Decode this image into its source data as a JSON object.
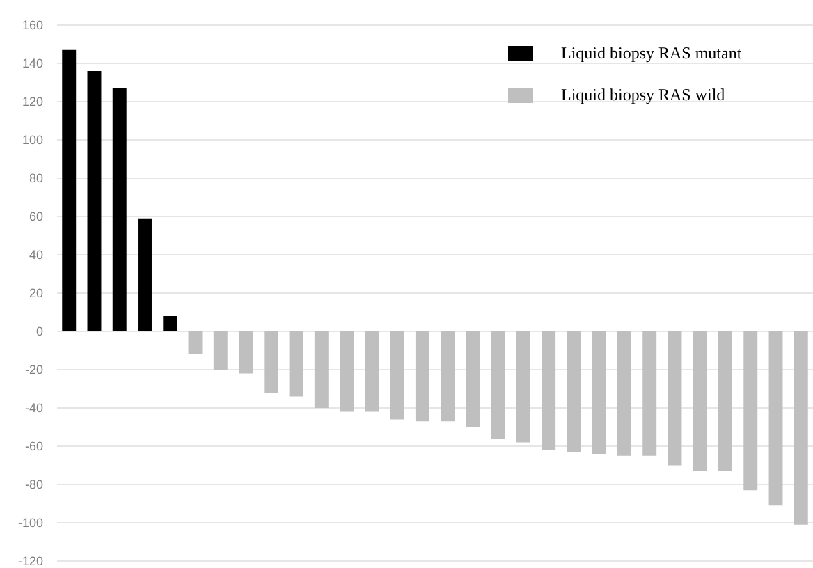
{
  "chart_data": {
    "type": "bar",
    "categories": [
      null,
      null,
      null,
      null,
      null,
      null,
      null,
      null,
      null,
      null,
      null,
      null,
      null,
      null,
      null,
      null,
      null,
      null,
      null,
      null,
      null,
      null,
      null,
      null,
      null,
      null,
      null,
      null,
      null,
      null
    ],
    "series": [
      {
        "name": "Liquid biopsy RAS mutant",
        "color": "#000000",
        "values": [
          147,
          136,
          127,
          59,
          8,
          null,
          null,
          null,
          null,
          null,
          null,
          null,
          null,
          null,
          null,
          null,
          null,
          null,
          null,
          null,
          null,
          null,
          null,
          null,
          null,
          null,
          null,
          null,
          null,
          null
        ]
      },
      {
        "name": "Liquid biopsy RAS wild",
        "color": "#bfbfbf",
        "values": [
          null,
          null,
          null,
          null,
          null,
          -12,
          -20,
          -22,
          -32,
          -34,
          -40,
          -42,
          -42,
          -46,
          -47,
          -47,
          -50,
          -56,
          -58,
          -62,
          -63,
          -64,
          -65,
          -65,
          -70,
          -73,
          -73,
          -83,
          -91,
          -101
        ]
      }
    ],
    "ylim": [
      -120,
      160
    ],
    "yticks": [
      -120,
      -100,
      -80,
      -60,
      -40,
      -20,
      0,
      20,
      40,
      60,
      80,
      100,
      120,
      140,
      160
    ],
    "grid": "y",
    "legend": "top right"
  }
}
